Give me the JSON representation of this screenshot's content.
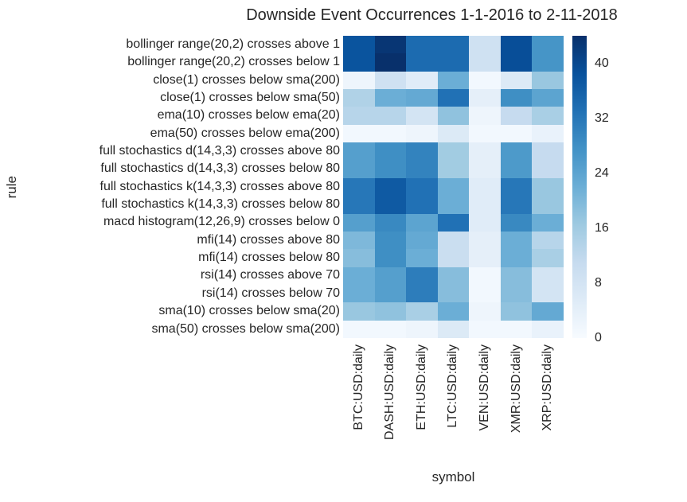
{
  "chart": {
    "title": "Downside Event Occurrences 1-1-2016 to 2-11-2018",
    "xlabel": "symbol",
    "ylabel": "rule"
  },
  "colors": {
    "background": "#ffffff",
    "text": "#262626",
    "colormap_stops": [
      "#f7fbff",
      "#deebf7",
      "#c6dbef",
      "#9ecae1",
      "#6baed6",
      "#4292c6",
      "#2171b5",
      "#08519c",
      "#08306b"
    ]
  },
  "chart_data": {
    "type": "heatmap",
    "title": "Downside Event Occurrences 1-1-2016 to 2-11-2018",
    "xlabel": "symbol",
    "ylabel": "rule",
    "colormap": "Blues",
    "vmin": 0,
    "vmax": 44,
    "colorbar_ticks": [
      0,
      8,
      16,
      24,
      32,
      40
    ],
    "legend_position": "right-colorbar",
    "grid": false,
    "columns": [
      "BTC:USD:daily",
      "DASH:USD:daily",
      "ETH:USD:daily",
      "LTC:USD:daily",
      "VEN:USD:daily",
      "XMR:USD:daily",
      "XRP:USD:daily"
    ],
    "rows": [
      "bollinger range(20,2) crosses above 1",
      "bollinger range(20,2) crosses below 1",
      "close(1) crosses below sma(200)",
      "close(1) crosses below sma(50)",
      "ema(10) crosses below ema(20)",
      "ema(50) crosses below ema(200)",
      "full stochastics d(14,3,3) crosses above 80",
      "full stochastics d(14,3,3) crosses below 80",
      "full stochastics k(14,3,3) crosses above 80",
      "full stochastics k(14,3,3) crosses below 80",
      "macd histogram(12,26,9) crosses below 0",
      "mfi(14) crosses above 80",
      "mfi(14) crosses below 80",
      "rsi(14) crosses above 70",
      "rsi(14) crosses below 70",
      "sma(10) crosses below sma(20)",
      "sma(50) crosses below sma(200)"
    ],
    "values": [
      [
        38,
        43,
        34,
        34,
        9,
        39,
        27
      ],
      [
        38,
        44,
        34,
        34,
        9,
        39,
        27
      ],
      [
        2,
        9,
        5,
        22,
        1,
        6,
        17
      ],
      [
        14,
        22,
        23,
        33,
        4,
        28,
        24
      ],
      [
        13,
        13,
        8,
        18,
        2,
        11,
        15
      ],
      [
        1,
        1,
        2,
        6,
        1,
        1,
        3
      ],
      [
        25,
        28,
        30,
        16,
        4,
        26,
        11
      ],
      [
        25,
        28,
        30,
        16,
        4,
        26,
        11
      ],
      [
        32,
        37,
        33,
        22,
        5,
        32,
        17
      ],
      [
        32,
        37,
        33,
        22,
        5,
        32,
        17
      ],
      [
        25,
        29,
        24,
        33,
        5,
        29,
        22
      ],
      [
        20,
        28,
        23,
        10,
        4,
        22,
        13
      ],
      [
        19,
        28,
        22,
        10,
        4,
        22,
        15
      ],
      [
        22,
        25,
        31,
        19,
        1,
        19,
        8
      ],
      [
        22,
        25,
        31,
        19,
        1,
        19,
        8
      ],
      [
        17,
        18,
        15,
        22,
        2,
        18,
        23
      ],
      [
        1,
        1,
        2,
        6,
        1,
        1,
        3
      ]
    ]
  }
}
